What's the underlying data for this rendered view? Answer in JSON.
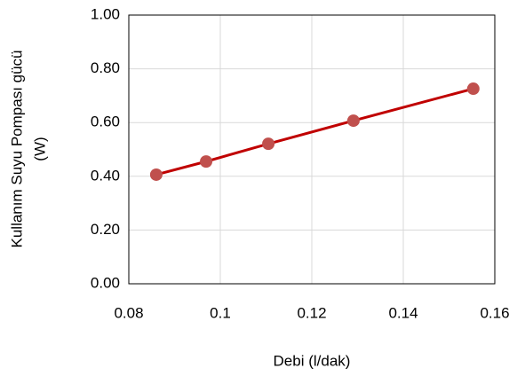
{
  "chart_data": {
    "type": "line",
    "xlabel": "Debi (l/dak)",
    "ylabel": [
      "Kullanım Suyu Pompası gücü",
      "(W)"
    ],
    "x": [
      0.086,
      0.0969,
      0.1105,
      0.1291,
      0.1553
    ],
    "series": [
      {
        "values": [
          0.406,
          0.455,
          0.521,
          0.607,
          0.726
        ],
        "color": "#c00000",
        "marker_color": "#c0504d"
      }
    ],
    "xlim": [
      0.08,
      0.16
    ],
    "xticks": [
      0.08,
      0.1,
      0.12,
      0.14,
      0.16
    ],
    "ylim": [
      0,
      1
    ],
    "yticks": [
      {
        "value": 0,
        "label": "0.00"
      },
      {
        "value": 0.2,
        "label": "0.20"
      },
      {
        "value": 0.4,
        "label": "0.40"
      },
      {
        "value": 0.6,
        "label": "0.60"
      },
      {
        "value": 0.8,
        "label": "0.80"
      },
      {
        "value": 1,
        "label": "1.00"
      }
    ],
    "grid": true
  }
}
